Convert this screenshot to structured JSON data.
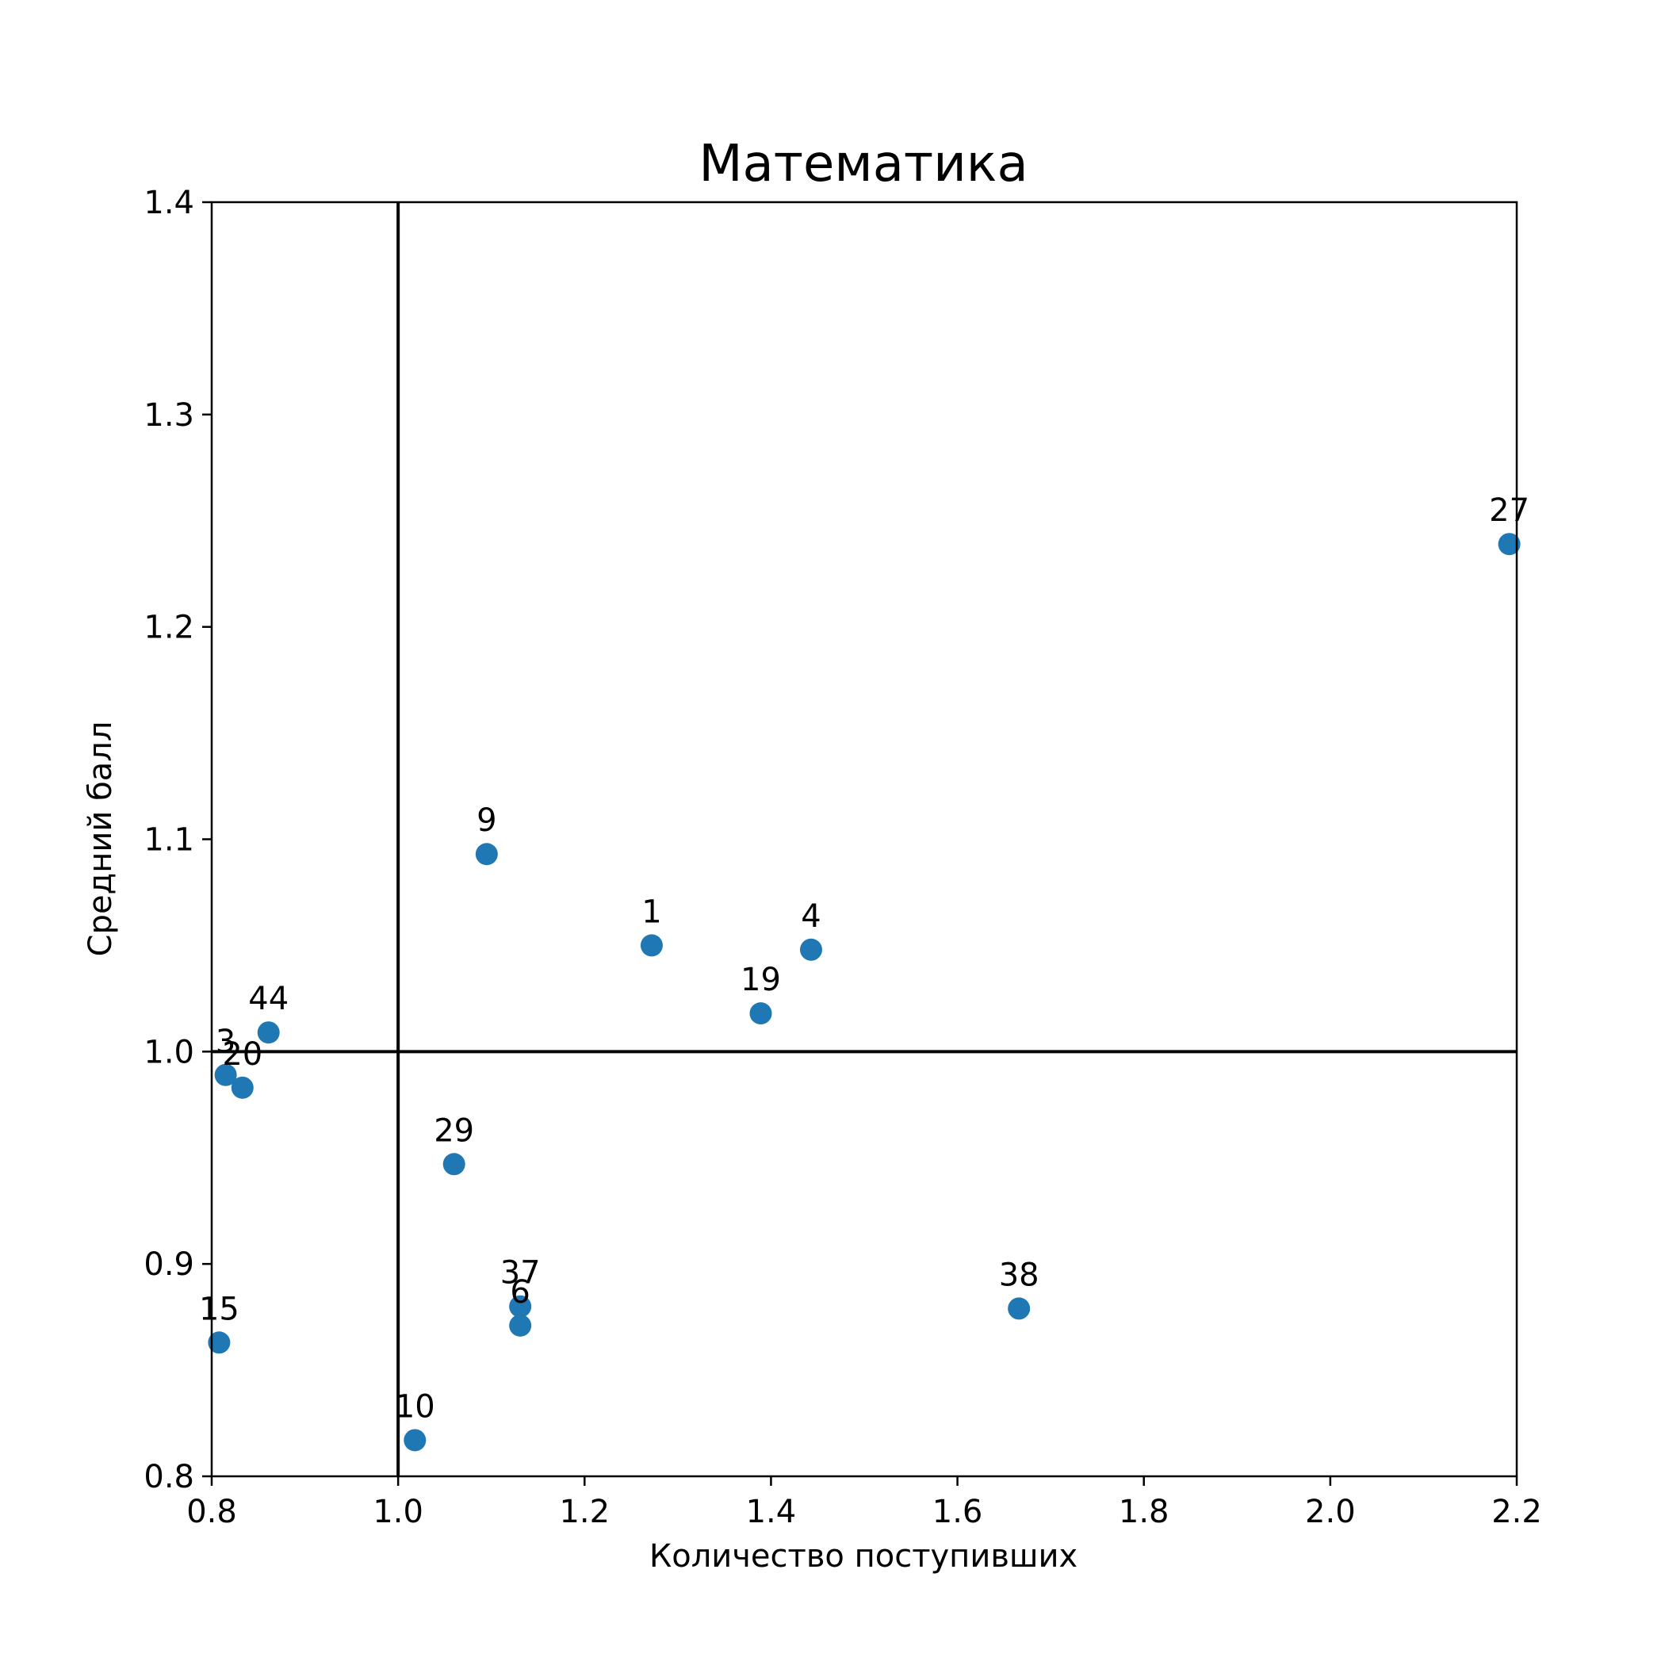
{
  "chart_data": {
    "type": "scatter",
    "title": "Математика",
    "xlabel": "Количество поступивших",
    "ylabel": "Средний балл",
    "xlim": [
      0.8,
      2.2
    ],
    "ylim": [
      0.8,
      1.4
    ],
    "xticks": [
      "0.8",
      "1.0",
      "1.2",
      "1.4",
      "1.6",
      "1.8",
      "2.0",
      "2.2"
    ],
    "yticks": [
      "0.8",
      "0.9",
      "1.0",
      "1.1",
      "1.2",
      "1.3",
      "1.4"
    ],
    "reference_lines": {
      "x": 1.0,
      "y": 1.0
    },
    "point_color": "#1f77b4",
    "grid": false,
    "points": [
      {
        "label": "27",
        "x": 2.192,
        "y": 1.239
      },
      {
        "label": "9",
        "x": 1.095,
        "y": 1.093
      },
      {
        "label": "1",
        "x": 1.272,
        "y": 1.05
      },
      {
        "label": "4",
        "x": 1.443,
        "y": 1.048
      },
      {
        "label": "19",
        "x": 1.389,
        "y": 1.018
      },
      {
        "label": "44",
        "x": 0.861,
        "y": 1.009
      },
      {
        "label": "3",
        "x": 0.815,
        "y": 0.989
      },
      {
        "label": "20",
        "x": 0.833,
        "y": 0.983
      },
      {
        "label": "29",
        "x": 1.06,
        "y": 0.947
      },
      {
        "label": "37",
        "x": 1.131,
        "y": 0.88
      },
      {
        "label": "6",
        "x": 1.131,
        "y": 0.871
      },
      {
        "label": "38",
        "x": 1.666,
        "y": 0.879
      },
      {
        "label": "15",
        "x": 0.808,
        "y": 0.863
      },
      {
        "label": "10",
        "x": 1.018,
        "y": 0.817
      }
    ]
  }
}
